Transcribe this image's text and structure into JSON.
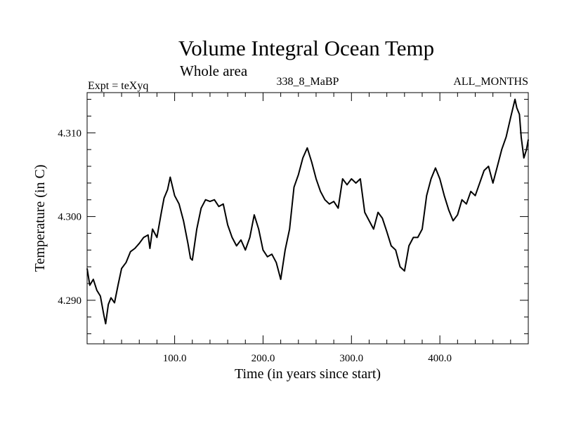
{
  "chart_data": {
    "type": "line",
    "title": "Volume Integral Ocean Temp",
    "subtitle": "Whole area",
    "left_label": "Expt = teXyq",
    "center_label": "338_8_MaBP",
    "right_label": "ALL_MONTHS",
    "xlabel": "Time (in years since start)",
    "ylabel": "Temperature (in C)",
    "xlim": [
      1,
      500
    ],
    "ylim": [
      4.2848,
      4.3148
    ],
    "x_ticks": [
      100,
      200,
      300,
      400
    ],
    "x_tick_labels": [
      "100.0",
      "200.0",
      "300.0",
      "400.0"
    ],
    "y_ticks": [
      4.29,
      4.3,
      4.31
    ],
    "y_tick_labels": [
      "4.290",
      "4.300",
      "4.310"
    ],
    "grid": false,
    "series": [
      {
        "color": "#000000",
        "x": [
          1,
          4,
          8,
          12,
          16,
          20,
          22,
          25,
          28,
          32,
          36,
          40,
          45,
          50,
          55,
          60,
          65,
          70,
          72,
          75,
          80,
          85,
          88,
          92,
          95,
          100,
          105,
          110,
          115,
          118,
          120,
          125,
          130,
          135,
          140,
          145,
          150,
          155,
          160,
          165,
          170,
          175,
          180,
          185,
          190,
          195,
          200,
          205,
          210,
          215,
          220,
          225,
          230,
          235,
          240,
          245,
          250,
          255,
          260,
          265,
          270,
          275,
          280,
          285,
          290,
          295,
          300,
          305,
          310,
          315,
          320,
          325,
          330,
          335,
          340,
          345,
          350,
          355,
          360,
          365,
          370,
          375,
          380,
          385,
          390,
          395,
          400,
          405,
          410,
          415,
          420,
          425,
          430,
          435,
          440,
          445,
          450,
          455,
          460,
          465,
          470,
          475,
          480,
          485,
          487,
          490,
          492,
          495,
          498,
          500
        ],
        "y": [
          4.2938,
          4.2918,
          4.2925,
          4.2912,
          4.2905,
          4.2882,
          4.2872,
          4.2895,
          4.2903,
          4.2897,
          4.2918,
          4.2938,
          4.2945,
          4.2958,
          4.2962,
          4.2968,
          4.2975,
          4.2978,
          4.2962,
          4.2985,
          4.2975,
          4.3005,
          4.3022,
          4.3032,
          4.3047,
          4.3025,
          4.3015,
          4.2995,
          4.2968,
          4.295,
          4.2948,
          4.2985,
          4.301,
          4.302,
          4.3018,
          4.302,
          4.3012,
          4.3015,
          4.299,
          4.2975,
          4.2965,
          4.2972,
          4.296,
          4.2975,
          4.3002,
          4.2985,
          4.296,
          4.2952,
          4.2955,
          4.2945,
          4.2925,
          4.296,
          4.2985,
          4.3035,
          4.305,
          4.307,
          4.3082,
          4.3065,
          4.3045,
          4.303,
          4.302,
          4.3015,
          4.3018,
          4.301,
          4.3045,
          4.3038,
          4.3045,
          4.304,
          4.3045,
          4.3005,
          4.2995,
          4.2985,
          4.3005,
          4.2998,
          4.2982,
          4.2965,
          4.296,
          4.294,
          4.2935,
          4.2965,
          4.2975,
          4.2975,
          4.2985,
          4.3025,
          4.3045,
          4.3058,
          4.3045,
          4.3025,
          4.3008,
          4.2995,
          4.3002,
          4.302,
          4.3015,
          4.303,
          4.3025,
          4.304,
          4.3055,
          4.306,
          4.304,
          4.306,
          4.308,
          4.3095,
          4.3118,
          4.314,
          4.313,
          4.3122,
          4.3095,
          4.307,
          4.308,
          4.3092
        ]
      }
    ]
  }
}
